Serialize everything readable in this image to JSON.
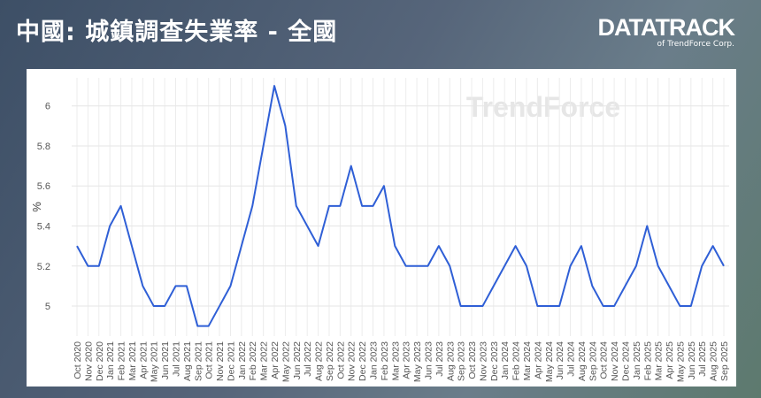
{
  "header": {
    "title": "中國: 城鎮調查失業率 - 全國",
    "logo": "DATATRACK",
    "logo_sub": "of TrendForce Corp."
  },
  "chart_data": {
    "type": "line",
    "watermark": "TrendForce",
    "y_label": "%",
    "categories": [
      "Oct 2020",
      "Nov 2020",
      "Dec 2020",
      "Jan 2021",
      "Feb 2021",
      "Mar 2021",
      "Apr 2021",
      "May 2021",
      "Jun 2021",
      "Jul 2021",
      "Aug 2021",
      "Sep 2021",
      "Oct 2021",
      "Nov 2021",
      "Dec 2021",
      "Jan 2022",
      "Feb 2022",
      "Mar 2022",
      "Apr 2022",
      "May 2022",
      "Jun 2022",
      "Jul 2022",
      "Aug 2022",
      "Sep 2022",
      "Oct 2022",
      "Nov 2022",
      "Dec 2022",
      "Jan 2023",
      "Feb 2023",
      "Mar 2023",
      "Apr 2023",
      "May 2023",
      "Jun 2023",
      "Jul 2023",
      "Aug 2023",
      "Sep 2023",
      "Oct 2023",
      "Nov 2023",
      "Dec 2023",
      "Jan 2024",
      "Feb 2024",
      "Mar 2024",
      "Apr 2024",
      "May 2024",
      "Jun 2024",
      "Jul 2024",
      "Aug 2024",
      "Sep 2024",
      "Oct 2024",
      "Nov 2024",
      "Dec 2024",
      "Jan 2025",
      "Feb 2025",
      "Mar 2025",
      "Apr 2025",
      "May 2025",
      "Jun 2025",
      "Jul 2025",
      "Aug 2025",
      "Sep 2025"
    ],
    "series": [
      {
        "name": "城鎮調查失業率",
        "color": "#2f5fd6",
        "values": [
          5.3,
          5.2,
          5.2,
          5.4,
          5.5,
          5.3,
          5.1,
          5.0,
          5.0,
          5.1,
          5.1,
          4.9,
          4.9,
          5.0,
          5.1,
          5.3,
          5.5,
          5.8,
          6.1,
          5.9,
          5.5,
          5.4,
          5.3,
          5.5,
          5.5,
          5.7,
          5.5,
          5.5,
          5.6,
          5.3,
          5.2,
          5.2,
          5.2,
          5.3,
          5.2,
          5.0,
          5.0,
          5.0,
          5.1,
          5.2,
          5.3,
          5.2,
          5.0,
          5.0,
          5.0,
          5.2,
          5.3,
          5.1,
          5.0,
          5.0,
          5.1,
          5.2,
          5.4,
          5.2,
          5.1,
          5.0,
          5.0,
          5.2,
          5.3,
          5.2
        ]
      }
    ],
    "ylim": [
      4.85,
      6.14
    ],
    "yticks": [
      5,
      5.2,
      5.4,
      5.6,
      5.8,
      6
    ],
    "grid": true
  }
}
